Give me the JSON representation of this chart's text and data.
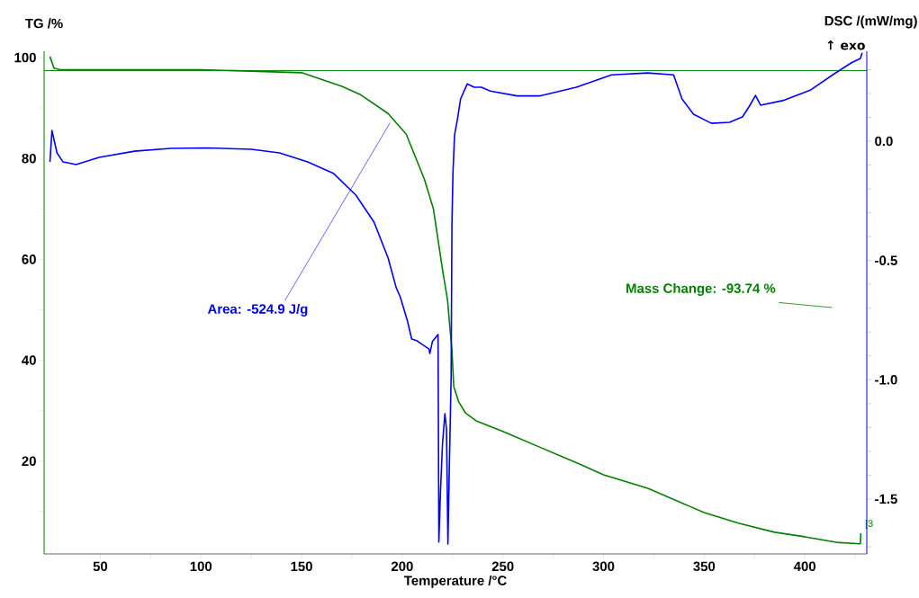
{
  "chart_data": {
    "type": "line",
    "xlabel": "Temperature /°C",
    "ylabel": "TG /%",
    "y2label": "DSC /(mW/mg)",
    "xlim": [
      22.1,
      430.8
    ],
    "xticks": [
      50,
      100,
      150,
      200,
      250,
      300,
      350,
      400,
      {
        "value": 75,
        "label": null
      },
      {
        "value": 125,
        "label": null
      },
      {
        "value": 175,
        "label": null
      },
      {
        "value": 225,
        "label": null
      },
      {
        "value": 275,
        "label": null
      },
      {
        "value": 325,
        "label": null
      },
      {
        "value": 375,
        "label": null
      },
      {
        "value": 425,
        "label": null
      }
    ],
    "ylim": [
      1.6,
      101.25
    ],
    "yticks": [
      20,
      40,
      60,
      80,
      100,
      {
        "value": 10,
        "label": null
      },
      {
        "value": 30,
        "label": null
      },
      {
        "value": 50,
        "label": null
      },
      {
        "value": 70,
        "label": null
      },
      {
        "value": 90,
        "label": null
      }
    ],
    "y2lim": [
      -1.73,
      0.377
    ],
    "y2ticks": [
      {
        "value": 0,
        "label": "0.0"
      },
      {
        "value": -0.5,
        "label": "-0.5"
      },
      {
        "value": -1.0,
        "label": "-1.0"
      },
      {
        "value": -1.5,
        "label": "-1.5"
      },
      {
        "value": 0.3,
        "label": null
      },
      {
        "value": 0.2,
        "label": null
      },
      {
        "value": 0.1,
        "label": null
      },
      {
        "value": -0.1,
        "label": null
      },
      {
        "value": -0.2,
        "label": null
      },
      {
        "value": -0.3,
        "label": null
      },
      {
        "value": -0.4,
        "label": null
      },
      {
        "value": -0.6,
        "label": null
      },
      {
        "value": -0.7,
        "label": null
      },
      {
        "value": -0.8,
        "label": null
      },
      {
        "value": -0.9,
        "label": null
      },
      {
        "value": -1.1,
        "label": null
      },
      {
        "value": -1.2,
        "label": null
      },
      {
        "value": -1.3,
        "label": null
      },
      {
        "value": -1.4,
        "label": null
      },
      {
        "value": -1.6,
        "label": null
      },
      {
        "value": -1.7,
        "label": null
      }
    ],
    "grid": false,
    "marker": "none",
    "line_style": "solid",
    "series": [
      {
        "color": "#008000",
        "x": [
          25,
          27,
          30,
          60,
          100,
          150,
          170,
          179,
          193,
          202,
          211,
          215.5,
          220,
          222.5,
          223.5,
          224.7,
          225.6,
          228,
          231.5,
          236.7,
          250,
          268.7,
          288.8,
          300,
          322,
          350,
          367,
          385,
          400,
          415.6,
          427.6,
          427.8
        ],
        "values": [
          100.2,
          97.9,
          97.6,
          97.6,
          97.6,
          97.0,
          94.3,
          92.7,
          88.9,
          84.8,
          75.9,
          70.0,
          58.0,
          52.0,
          47.3,
          42.0,
          34.8,
          31.8,
          29.5,
          28.0,
          25.9,
          22.7,
          19.3,
          17.3,
          14.6,
          9.8,
          7.7,
          5.9,
          5.0,
          3.9,
          3.6,
          5.7
        ]
      },
      {
        "color": "#0000ff",
        "axis": "y2",
        "x": [
          25,
          26,
          28.5,
          31.5,
          38,
          49.4,
          67,
          85,
          103,
          125,
          139,
          153,
          166,
          177,
          186,
          193,
          197,
          199,
          202.6,
          204.7,
          207.4,
          213.3,
          213.7,
          215,
          217.8,
          218.2,
          219,
          220,
          221.2,
          222,
          222.7,
          223.4,
          224.3,
          224.7,
          225.2,
          226,
          227.4,
          229,
          232.3,
          235.7,
          239.3,
          243.8,
          257,
          268.7,
          286.5,
          304,
          322,
          334.8,
          339,
          344.7,
          353.6,
          362.6,
          369,
          372.5,
          375.5,
          378,
          389,
          403,
          414,
          423,
          427.6,
          428.5
        ],
        "values": [
          -0.087,
          0.045,
          -0.049,
          -0.087,
          -0.098,
          -0.068,
          -0.042,
          -0.03,
          -0.028,
          -0.034,
          -0.049,
          -0.087,
          -0.136,
          -0.226,
          -0.339,
          -0.49,
          -0.614,
          -0.652,
          -0.754,
          -0.829,
          -0.837,
          -0.871,
          -0.89,
          -0.84,
          -0.81,
          -1.68,
          -1.47,
          -1.27,
          -1.142,
          -1.206,
          -1.689,
          -1.368,
          -0.99,
          -0.35,
          -0.136,
          0.026,
          0.09,
          0.177,
          0.24,
          0.226,
          0.226,
          0.21,
          0.19,
          0.19,
          0.226,
          0.278,
          0.286,
          0.278,
          0.177,
          0.113,
          0.075,
          0.079,
          0.102,
          0.147,
          0.192,
          0.151,
          0.17,
          0.215,
          0.279,
          0.328,
          0.347,
          0.37
        ]
      }
    ],
    "ref_lines": [
      {
        "axis": "y",
        "value": 97.4,
        "color": "#008000"
      }
    ],
    "annotations": [
      {
        "text": "Area: -524.9 J/g",
        "x": 194,
        "y": 87.1
      },
      "Mass Change: -93.74 %",
      "↑ exo",
      {
        "text": "[3",
        "x": 428.5,
        "y": 5.7
      }
    ]
  }
}
